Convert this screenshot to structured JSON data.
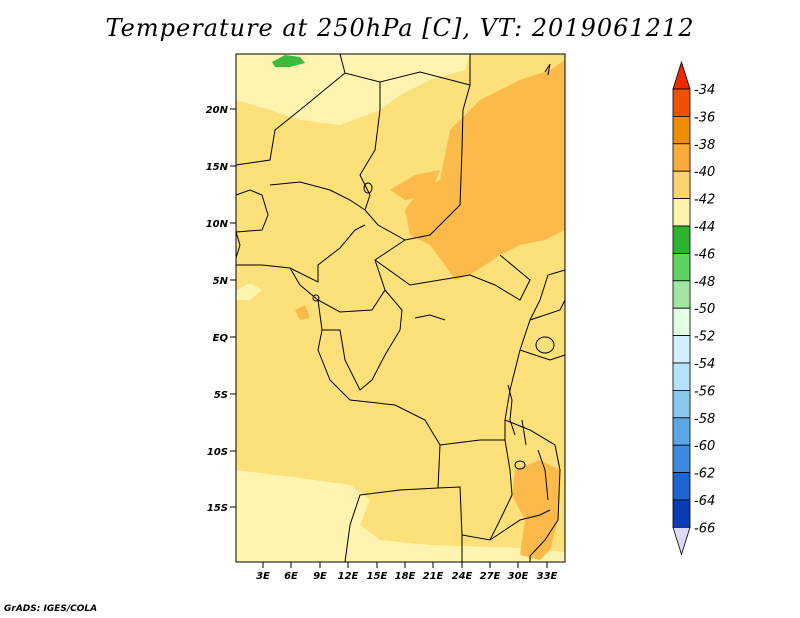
{
  "title": "Temperature at 250hPa [C], VT: 2019061212",
  "credit": "GrADS: IGES/COLA",
  "map": {
    "lat_labels": [
      "20N",
      "15N",
      "10N",
      "5N",
      "EQ",
      "5S",
      "10S",
      "15S"
    ],
    "lon_labels": [
      "3E",
      "6E",
      "9E",
      "12E",
      "15E",
      "18E",
      "21E",
      "24E",
      "27E",
      "30E",
      "33E"
    ],
    "base_fill_color": "#fce07a"
  },
  "colorbar": {
    "labels": [
      "-34",
      "-36",
      "-38",
      "-40",
      "-42",
      "-44",
      "-46",
      "-48",
      "-50",
      "-52",
      "-54",
      "-56",
      "-58",
      "-60",
      "-62",
      "-64",
      "-66"
    ],
    "colors": [
      "#f05000",
      "#f08c00",
      "#fcac3c",
      "#fcd26e",
      "#fef4b0",
      "#2eb32e",
      "#5fd35f",
      "#a0e6a0",
      "#e2ffe6",
      "#d2f0ff",
      "#b4e2fa",
      "#8ac8f0",
      "#5aa8e8",
      "#3c8ae2",
      "#1e64d2",
      "#0a3cb4",
      "#0a1478"
    ],
    "top_arrow_color": "#f02800",
    "bottom_arrow_color": "#dcdcf8"
  }
}
